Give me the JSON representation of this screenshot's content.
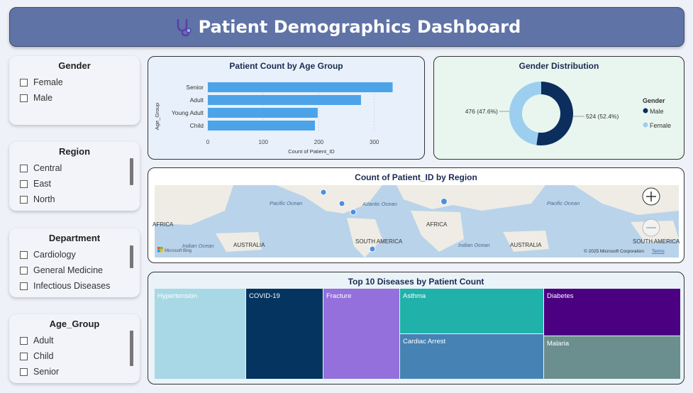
{
  "header": {
    "title": "Patient Demographics Dashboard",
    "icon": "stethoscope-icon"
  },
  "slicers": [
    {
      "title": "Gender",
      "items": [
        "Female",
        "Male"
      ]
    },
    {
      "title": "Region",
      "items": [
        "Central",
        "East",
        "North"
      ]
    },
    {
      "title": "Department",
      "items": [
        "Cardiology",
        "General Medicine",
        "Infectious Diseases"
      ]
    },
    {
      "title": "Age_Group",
      "items": [
        "Adult",
        "Child",
        "Senior"
      ]
    }
  ],
  "age_chart": {
    "title": "Patient Count by Age Group",
    "xlabel": "Count of Patient_ID",
    "ylabel": "Age_Group",
    "ticks": [
      "0",
      "100",
      "200",
      "300"
    ]
  },
  "gender_chart": {
    "title": "Gender Distribution",
    "legend_title": "Gender",
    "legend": [
      "Male",
      "Female"
    ],
    "labels": [
      "524 (52.4%)",
      "476 (47.6%)"
    ]
  },
  "map_chart": {
    "title": "Count of Patient_ID by Region",
    "labels": [
      "Pacific Ocean",
      "Atlantic Ocean",
      "Pacific Ocean",
      "AFRICA",
      "AFRICA",
      "Indian Ocean",
      "AUSTRALIA",
      "SOUTH AMERICA",
      "Indian Ocean",
      "AUSTRALIA",
      "SOUTH AMERICA"
    ],
    "attribution": "© 2025 Microsoft Corporation",
    "terms": "Terms",
    "bing": "Microsoft Bing"
  },
  "tree_chart": {
    "title": "Top 10 Diseases by Patient Count"
  },
  "chart_data": [
    {
      "type": "bar",
      "categories": [
        "Senior",
        "Adult",
        "Young Adult",
        "Child"
      ],
      "values": [
        333,
        276,
        198,
        193
      ],
      "xlim": [
        0,
        340
      ],
      "colors": {
        "bar": "#4da3e8"
      }
    },
    {
      "type": "pie",
      "categories": [
        "Male",
        "Female"
      ],
      "values": [
        524,
        476
      ],
      "colors": [
        "#0b2e5c",
        "#9ccfef"
      ]
    },
    {
      "type": "treemap",
      "categories": [
        "Hypertension",
        "COVID-19",
        "Fracture",
        "Asthma",
        "Cardiac Arrest",
        "Diabetes",
        "Malaria"
      ],
      "colors": [
        "#a8d8e6",
        "#04345f",
        "#9370db",
        "#20b2aa",
        "#4682b4",
        "#4b0082",
        "#6b8e8e"
      ]
    }
  ]
}
